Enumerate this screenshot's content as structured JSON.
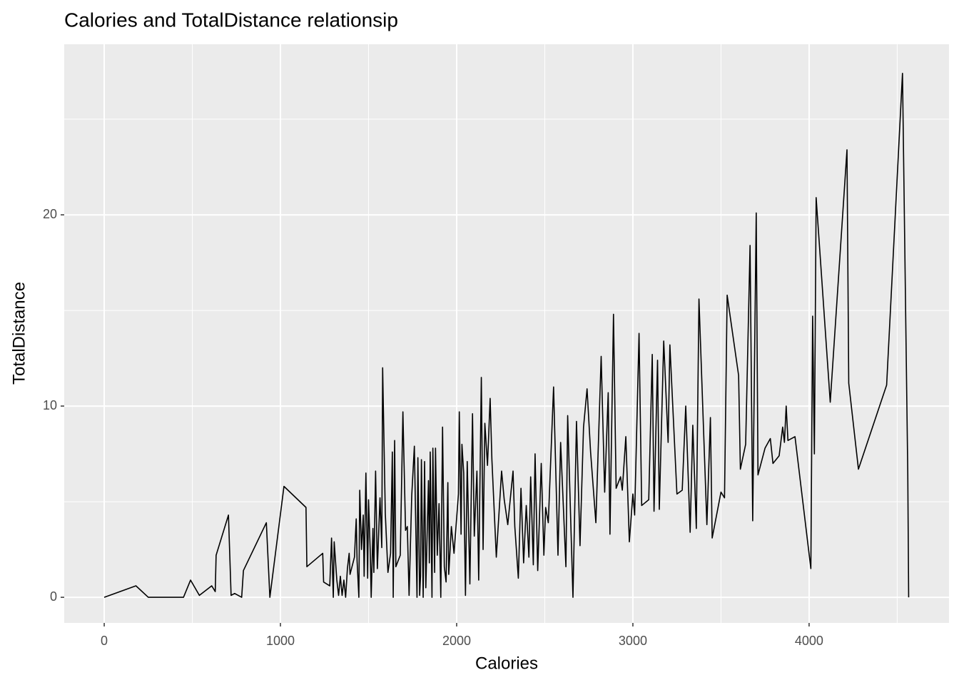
{
  "chart_data": {
    "type": "line",
    "title": "Calories and TotalDistance relationsip",
    "x_label": "Calories",
    "y_label": "TotalDistance",
    "x": [
      0,
      180,
      250,
      450,
      490,
      540,
      610,
      630,
      635,
      705,
      720,
      740,
      780,
      790,
      920,
      940,
      1020,
      1145,
      1150,
      1240,
      1245,
      1280,
      1290,
      1300,
      1305,
      1320,
      1330,
      1340,
      1350,
      1360,
      1370,
      1380,
      1390,
      1395,
      1420,
      1430,
      1435,
      1445,
      1450,
      1460,
      1470,
      1475,
      1485,
      1495,
      1500,
      1510,
      1515,
      1525,
      1530,
      1540,
      1550,
      1565,
      1575,
      1580,
      1595,
      1610,
      1625,
      1635,
      1640,
      1648,
      1655,
      1680,
      1695,
      1710,
      1720,
      1730,
      1745,
      1760,
      1775,
      1780,
      1790,
      1795,
      1800,
      1810,
      1818,
      1825,
      1840,
      1845,
      1850,
      1860,
      1865,
      1875,
      1880,
      1890,
      1900,
      1910,
      1920,
      1930,
      1940,
      1950,
      1955,
      1970,
      1985,
      2010,
      2015,
      2025,
      2030,
      2040,
      2050,
      2060,
      2075,
      2090,
      2100,
      2115,
      2125,
      2140,
      2150,
      2160,
      2175,
      2190,
      2200,
      2225,
      2255,
      2270,
      2290,
      2320,
      2330,
      2350,
      2365,
      2380,
      2395,
      2410,
      2420,
      2435,
      2445,
      2460,
      2480,
      2495,
      2505,
      2520,
      2550,
      2575,
      2590,
      2620,
      2630,
      2660,
      2680,
      2700,
      2720,
      2740,
      2760,
      2790,
      2820,
      2840,
      2860,
      2870,
      2890,
      2905,
      2930,
      2940,
      2960,
      2980,
      3000,
      3010,
      3035,
      3050,
      3090,
      3110,
      3120,
      3140,
      3150,
      3175,
      3200,
      3210,
      3250,
      3280,
      3300,
      3325,
      3340,
      3360,
      3375,
      3420,
      3440,
      3450,
      3500,
      3520,
      3535,
      3600,
      3610,
      3640,
      3665,
      3680,
      3700,
      3710,
      3750,
      3780,
      3795,
      3830,
      3850,
      3860,
      3870,
      3880,
      3920,
      4010,
      4020,
      4030,
      4040,
      4120,
      4215,
      4225,
      4280,
      4440,
      4530,
      4560,
      4565
    ],
    "series": [
      {
        "color": "#000000",
        "values": [
          0,
          0.6,
          0,
          0,
          0.9,
          0.1,
          0.6,
          0.3,
          2.2,
          4.3,
          0.1,
          0.2,
          0,
          1.4,
          3.9,
          0,
          5.8,
          4.7,
          1.6,
          2.3,
          0.8,
          0.6,
          3.1,
          0,
          2.9,
          0.9,
          0.1,
          1.1,
          0.1,
          0.9,
          0,
          1.5,
          2.3,
          1.2,
          2.1,
          4.1,
          1.9,
          0,
          5.6,
          2.5,
          4.3,
          1.1,
          6.5,
          1,
          5.1,
          2.3,
          0,
          3.6,
          1.3,
          6.6,
          1.5,
          5.2,
          2.6,
          12,
          4.4,
          1.3,
          2.3,
          7.6,
          0,
          8.2,
          1.6,
          2.2,
          9.7,
          3.5,
          3.7,
          0.1,
          5.3,
          7.9,
          0,
          7.3,
          0.1,
          1.1,
          7.2,
          0,
          7.1,
          0.5,
          6.1,
          1.8,
          7.6,
          0,
          7.8,
          1.3,
          7.8,
          2.2,
          4.9,
          0,
          8.9,
          1.6,
          0.8,
          6.0,
          1.2,
          3.7,
          2.3,
          5.4,
          9.7,
          3.3,
          8.0,
          6.5,
          0.1,
          7.1,
          0.7,
          9.6,
          3.2,
          6.6,
          0.9,
          11.5,
          2.5,
          9.1,
          6.9,
          10.4,
          7.2,
          2.1,
          6.6,
          5.1,
          3.8,
          6.6,
          3.7,
          1.0,
          5.7,
          1.8,
          4.8,
          2.1,
          6.3,
          1.7,
          7.5,
          1.4,
          7.0,
          2.2,
          4.7,
          3.9,
          11,
          2.2,
          8.1,
          1.6,
          9.5,
          0,
          9.2,
          2.7,
          8.9,
          10.9,
          7.6,
          3.9,
          12.6,
          5.5,
          10.7,
          3.3,
          14.8,
          5.7,
          6.3,
          5.6,
          8.4,
          2.9,
          5.4,
          4.3,
          13.8,
          4.8,
          5.1,
          12.7,
          4.5,
          12.4,
          4.6,
          13.4,
          8.1,
          13.2,
          5.4,
          5.6,
          10,
          3.4,
          9.0,
          3.6,
          15.6,
          3.8,
          9.4,
          3.1,
          5.5,
          5.2,
          15.8,
          11.6,
          6.7,
          8.0,
          18.4,
          4.0,
          20.1,
          6.4,
          7.8,
          8.3,
          7.0,
          7.4,
          8.9,
          8.1,
          10.0,
          8.2,
          8.4,
          1.5,
          14.7,
          7.5,
          20.9,
          10.2,
          23.4,
          11.2,
          6.7,
          11.1,
          27.4,
          6.5,
          0
        ]
      }
    ],
    "xlim": [
      -227,
      4794
    ],
    "ylim": [
      -1.34,
      28.92
    ],
    "xticks": [
      0,
      1000,
      2000,
      3000,
      4000
    ],
    "yticks": [
      0,
      10,
      20
    ],
    "minor_xticks": [
      500,
      1500,
      2500,
      3500,
      4500
    ],
    "minor_yticks": [
      5,
      15,
      25
    ],
    "grid": true,
    "panel_color": "#ebebeb",
    "grid_color": "#ffffff"
  }
}
